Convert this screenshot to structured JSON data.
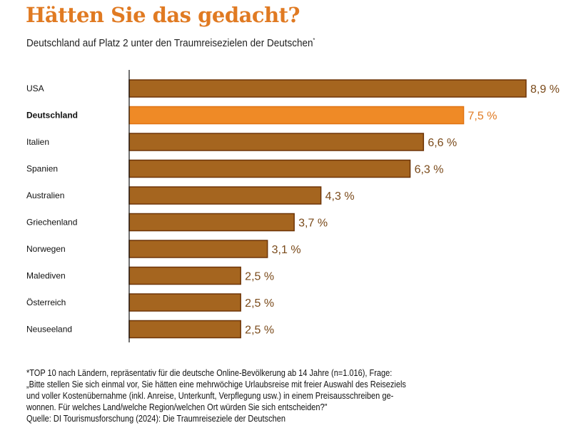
{
  "title": "Hätten Sie das gedacht?",
  "subtitle": "Deutschland auf Platz 2 unter den Traumreisezielen der Deutschen",
  "subtitle_mark": "*",
  "chart_data": {
    "type": "bar",
    "orientation": "horizontal",
    "categories": [
      "USA",
      "Deutschland",
      "Italien",
      "Spanien",
      "Australien",
      "Griechenland",
      "Norwegen",
      "Malediven",
      "Österreich",
      "Neuseeland"
    ],
    "values": [
      8.9,
      7.5,
      6.6,
      6.3,
      4.3,
      3.7,
      3.1,
      2.5,
      2.5,
      2.5
    ],
    "data_labels": [
      "8,9 %",
      "7,5 %",
      "6,6 %",
      "6,3 %",
      "4,3 %",
      "3,7 %",
      "3,1 %",
      "2,5 %",
      "2,5 %",
      "2,5 %"
    ],
    "highlight": "Deutschland",
    "unit": "%",
    "xlim": [
      0,
      8.9
    ],
    "colors": {
      "bar": "#a5651f",
      "bar_border": "#6e3508",
      "highlight": "#ef8a26",
      "highlight_border": "#e07515",
      "label": "#7a4a1a",
      "highlight_label": "#e07a22"
    }
  },
  "footnote": [
    "*TOP 10 nach Ländern, repräsentativ für die deutsche Online-Bevölkerung ab 14 Jahre (n=1.016), Frage:",
    "„Bitte stellen Sie sich einmal vor, Sie hätten eine mehrwöchige Urlaubsreise mit freier Auswahl des Reiseziels",
    "und voller Kostenübernahme (inkl. Anreise, Unterkunft, Verpflegung usw.) in einem Preisausschreiben ge-",
    "wonnen. Für welches Land/welche Region/welchen Ort würden Sie sich entscheiden?\"",
    "Quelle: DI Tourismusforschung (2024): Die Traumreiseziele der Deutschen"
  ]
}
